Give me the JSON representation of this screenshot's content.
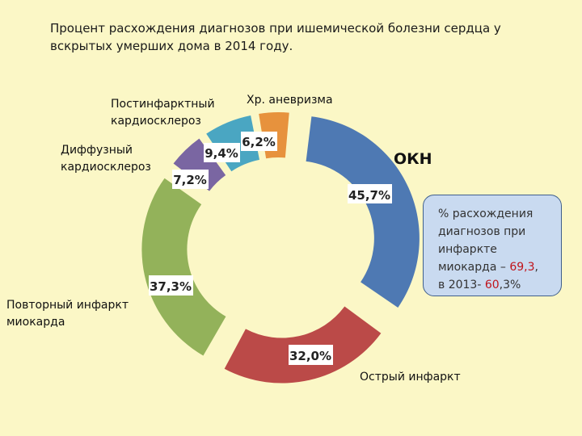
{
  "header": {
    "title_line1": "Процент расхождения диагнозов при ишемической болезни сердца у",
    "title_line2": "вскрытых умерших дома в 2014 году."
  },
  "chart_data": {
    "type": "donut",
    "center_label": "ОКН",
    "slices": [
      {
        "name": "ОКН",
        "value": 45.7,
        "label": "45,7%",
        "color": "#4e79b3"
      },
      {
        "name": "Острый инфаркт",
        "value": 32.0,
        "label": "32,0%",
        "color": "#bb4a48"
      },
      {
        "name": "Повторный инфаркт миокарда",
        "value": 37.3,
        "label": "37,3%",
        "color": "#93b25a"
      },
      {
        "name": "Диффузный кардиосклероз",
        "value": 7.2,
        "label": "7,2%",
        "color": "#7a66a2"
      },
      {
        "name": "Постинфарктный кардиосклероз",
        "value": 9.4,
        "label": "9,4%",
        "color": "#4aa6c2"
      },
      {
        "name": "Хр. аневризма",
        "value": 6.2,
        "label": "6,2%",
        "color": "#e7923d"
      }
    ],
    "category_labels": {
      "acute": "Острый инфаркт",
      "repeat_l1": "Повторный инфаркт",
      "repeat_l2": "миокарда",
      "diffuse_l1": "Диффузный",
      "diffuse_l2": "кардиосклероз",
      "postinf_l1": "Постинфарктный",
      "postinf_l2": "кардиосклероз",
      "aneurysm": "Хр. аневризма"
    }
  },
  "note": {
    "line1": "% расхождения",
    "line2": "диагнозов при",
    "line3": "инфаркте",
    "line4_prefix": "миокарда – ",
    "line4_value": "69,3",
    "line4_suffix": ",",
    "line5_prefix": "в 2013- ",
    "line5_value": "60",
    "line5_suffix": ",3%"
  }
}
